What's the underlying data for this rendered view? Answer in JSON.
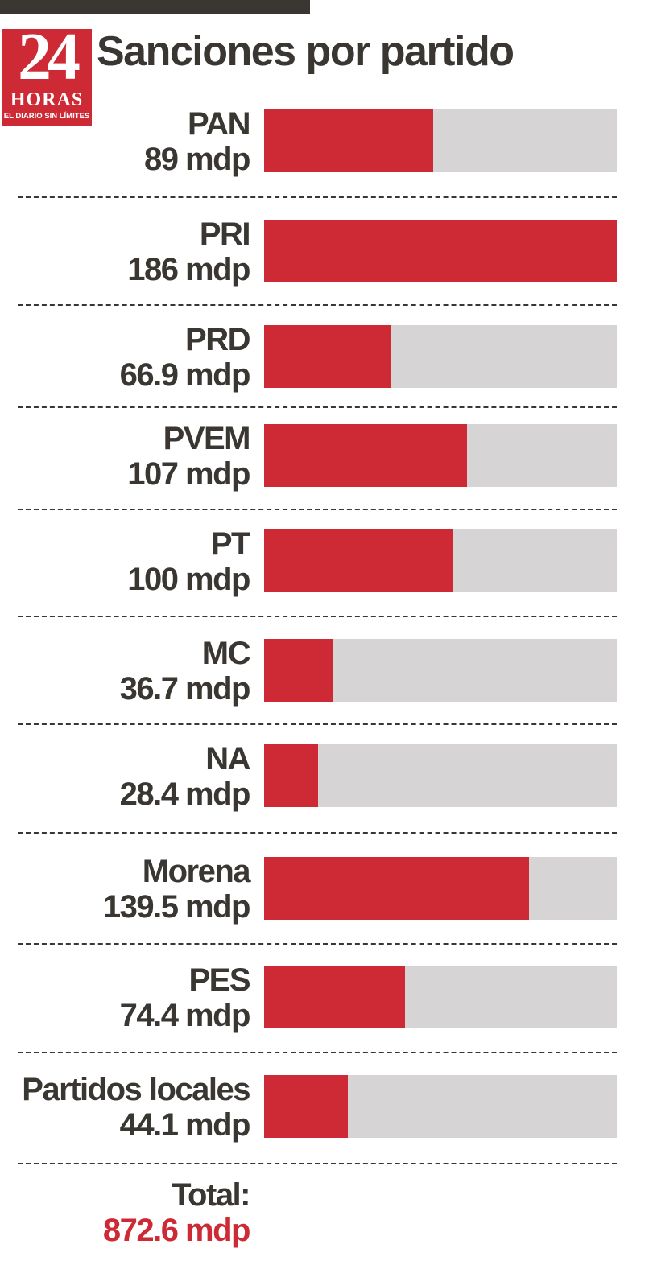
{
  "header": {
    "title": "Sanciones por partido",
    "logo": {
      "number": "24",
      "word": "HORAS",
      "tagline": "EL DIARIO SIN LÍMITES"
    }
  },
  "colors": {
    "bar": "#cd2a35",
    "track": "#d6d4d5",
    "text": "#3a3733",
    "total_value": "#cd2a35"
  },
  "chart_data": {
    "type": "bar",
    "orientation": "horizontal",
    "title": "Sanciones por partido",
    "unit": "mdp",
    "categories": [
      "PAN",
      "PRI",
      "PRD",
      "PVEM",
      "PT",
      "MC",
      "NA",
      "Morena",
      "PES",
      "Partidos locales"
    ],
    "values": [
      89,
      186,
      66.9,
      107,
      100,
      36.7,
      28.4,
      139.5,
      74.4,
      44.1
    ],
    "value_labels": [
      "89 mdp",
      "186 mdp",
      "66.9 mdp",
      "107 mdp",
      "100 mdp",
      "36.7 mdp",
      "28.4 mdp",
      "139.5 mdp",
      "74.4 mdp",
      "44.1 mdp"
    ],
    "xlim": [
      0,
      186
    ],
    "grid": false,
    "legend": "none"
  },
  "total": {
    "label": "Total:",
    "value": "872.6 mdp"
  }
}
